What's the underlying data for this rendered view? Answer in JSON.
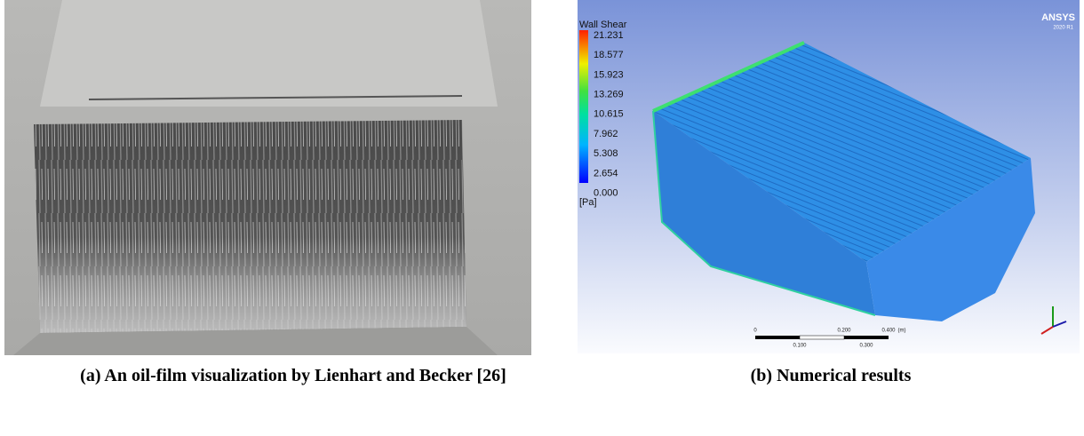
{
  "figure": {
    "panel_a": {
      "caption": "(a)  An oil-film visualization by Lienhart and Becker [26]"
    },
    "panel_b": {
      "caption": "(b) Numerical results",
      "colorbar": {
        "title": "Wall Shear",
        "ticks": [
          "21.231",
          "18.577",
          "15.923",
          "13.269",
          "10.615",
          "7.962",
          "5.308",
          "2.654",
          "0.000"
        ],
        "unit": "[Pa]"
      },
      "logo": "ANSYS",
      "version": "2020 R1",
      "scale_bar": {
        "top": [
          "0",
          "0.200",
          "0.400",
          "(m)"
        ],
        "bottom": [
          "0.100",
          "0.300"
        ]
      }
    }
  }
}
